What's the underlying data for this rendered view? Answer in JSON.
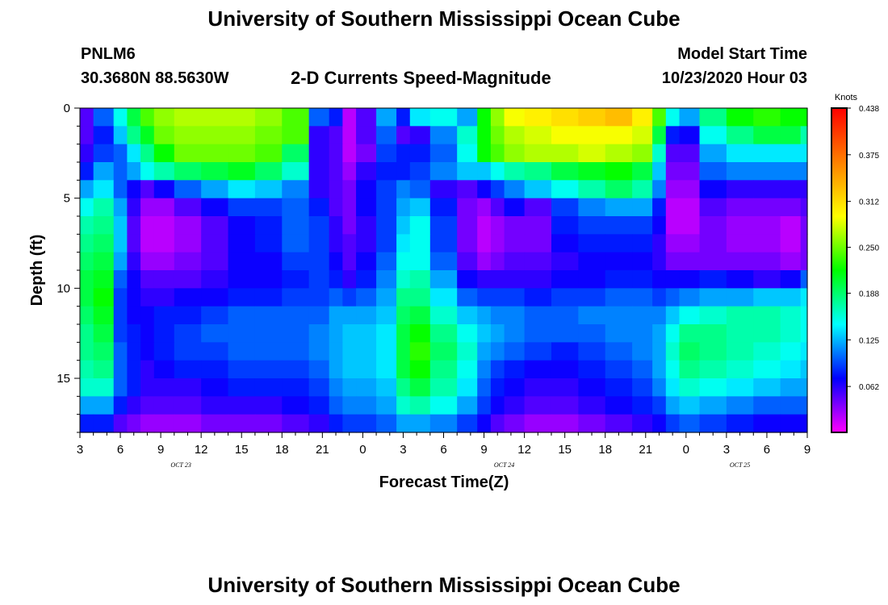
{
  "page": {
    "title": "University of Southern Mississippi Ocean Cube",
    "footer_title": "University of Southern Mississippi Ocean Cube",
    "station": "PNLM6",
    "coordinates": "30.3680N 88.5630W",
    "subtitle": "2-D Currents Speed-Magnitude",
    "model_start_label": "Model Start Time",
    "model_start_value": "10/23/2020 Hour 03"
  },
  "chart_data": {
    "type": "heatmap",
    "title": "2-D Currents Speed-Magnitude",
    "xlabel": "Forecast Time(Z)",
    "ylabel": "Depth (ft)",
    "x_tick_labels": [
      "3",
      "6",
      "9",
      "12",
      "15",
      "18",
      "21",
      "0",
      "3",
      "6",
      "9",
      "12",
      "15",
      "18",
      "21",
      "0",
      "3",
      "6",
      "9"
    ],
    "date_labels": [
      "OCT 23",
      "OCT 24",
      "OCT 25"
    ],
    "y_tick_labels": [
      "0",
      "5",
      "10",
      "15"
    ],
    "y_range": [
      0,
      18
    ],
    "x_range_hours": [
      0,
      54
    ],
    "colorbar": {
      "label": "Knots",
      "ticks": [
        "0.438",
        "0.375",
        "0.312",
        "0.250",
        "0.188",
        "0.125",
        "0.062"
      ],
      "range": [
        0.0,
        0.438
      ],
      "colors": [
        "#ff00ff",
        "#8000ff",
        "#0000ff",
        "#0080ff",
        "#00ffff",
        "#00ff80",
        "#00ff00",
        "#80ff00",
        "#ffff00",
        "#ffc000",
        "#ff8000",
        "#ff4000",
        "#ff0000"
      ]
    },
    "depth_levels": [
      0,
      1,
      2,
      3,
      4,
      5,
      6,
      7,
      8,
      9,
      10,
      11,
      12,
      13,
      14,
      15,
      16,
      17
    ],
    "time_anchors": [
      0,
      2,
      3,
      4,
      5,
      6,
      8,
      10,
      12,
      14,
      16,
      18,
      19,
      20,
      21,
      23,
      24,
      25,
      27,
      29,
      30,
      31,
      32,
      34,
      36,
      38,
      40,
      42,
      43,
      44,
      45,
      47,
      49,
      51,
      53,
      54
    ],
    "values": [
      [
        0.05,
        0.1,
        0.15,
        0.2,
        0.24,
        0.26,
        0.27,
        0.27,
        0.27,
        0.26,
        0.24,
        0.1,
        0.08,
        0.02,
        0.05,
        0.12,
        0.08,
        0.14,
        0.15,
        0.12,
        0.22,
        0.26,
        0.29,
        0.3,
        0.31,
        0.32,
        0.33,
        0.3,
        0.24,
        0.15,
        0.12,
        0.18,
        0.22,
        0.23,
        0.22,
        0.22
      ],
      [
        0.05,
        0.08,
        0.13,
        0.18,
        0.21,
        0.25,
        0.26,
        0.26,
        0.26,
        0.25,
        0.24,
        0.06,
        0.05,
        0.02,
        0.05,
        0.1,
        0.05,
        0.06,
        0.11,
        0.16,
        0.22,
        0.25,
        0.27,
        0.28,
        0.29,
        0.29,
        0.29,
        0.28,
        0.2,
        0.08,
        0.07,
        0.15,
        0.18,
        0.2,
        0.2,
        0.17
      ],
      [
        0.06,
        0.09,
        0.1,
        0.14,
        0.18,
        0.22,
        0.25,
        0.25,
        0.25,
        0.24,
        0.19,
        0.06,
        0.05,
        0.02,
        0.04,
        0.09,
        0.08,
        0.08,
        0.1,
        0.15,
        0.22,
        0.24,
        0.26,
        0.27,
        0.27,
        0.28,
        0.27,
        0.26,
        0.16,
        0.05,
        0.05,
        0.12,
        0.14,
        0.14,
        0.14,
        0.14
      ],
      [
        0.08,
        0.12,
        0.1,
        0.12,
        0.15,
        0.17,
        0.19,
        0.2,
        0.21,
        0.19,
        0.16,
        0.06,
        0.05,
        0.03,
        0.06,
        0.08,
        0.08,
        0.09,
        0.11,
        0.13,
        0.13,
        0.15,
        0.17,
        0.18,
        0.2,
        0.21,
        0.22,
        0.2,
        0.13,
        0.04,
        0.04,
        0.1,
        0.11,
        0.11,
        0.11,
        0.11
      ],
      [
        0.12,
        0.14,
        0.1,
        0.07,
        0.05,
        0.07,
        0.1,
        0.12,
        0.14,
        0.13,
        0.11,
        0.06,
        0.05,
        0.04,
        0.07,
        0.09,
        0.11,
        0.1,
        0.06,
        0.05,
        0.07,
        0.09,
        0.11,
        0.13,
        0.15,
        0.17,
        0.19,
        0.17,
        0.11,
        0.03,
        0.03,
        0.07,
        0.06,
        0.06,
        0.06,
        0.06
      ],
      [
        0.15,
        0.17,
        0.12,
        0.06,
        0.03,
        0.03,
        0.05,
        0.07,
        0.09,
        0.09,
        0.1,
        0.08,
        0.05,
        0.04,
        0.07,
        0.09,
        0.12,
        0.13,
        0.08,
        0.04,
        0.03,
        0.05,
        0.07,
        0.05,
        0.09,
        0.11,
        0.12,
        0.12,
        0.08,
        0.02,
        0.02,
        0.05,
        0.04,
        0.04,
        0.04,
        0.05
      ],
      [
        0.17,
        0.18,
        0.13,
        0.05,
        0.02,
        0.02,
        0.03,
        0.05,
        0.07,
        0.08,
        0.1,
        0.09,
        0.06,
        0.04,
        0.06,
        0.09,
        0.13,
        0.15,
        0.09,
        0.04,
        0.02,
        0.03,
        0.04,
        0.04,
        0.08,
        0.09,
        0.09,
        0.09,
        0.07,
        0.02,
        0.02,
        0.04,
        0.03,
        0.03,
        0.02,
        0.04
      ],
      [
        0.18,
        0.19,
        0.13,
        0.05,
        0.02,
        0.02,
        0.03,
        0.05,
        0.07,
        0.08,
        0.1,
        0.09,
        0.06,
        0.05,
        0.06,
        0.09,
        0.14,
        0.15,
        0.09,
        0.04,
        0.02,
        0.03,
        0.04,
        0.04,
        0.07,
        0.08,
        0.08,
        0.08,
        0.06,
        0.03,
        0.03,
        0.04,
        0.03,
        0.03,
        0.02,
        0.04
      ],
      [
        0.19,
        0.2,
        0.12,
        0.06,
        0.03,
        0.03,
        0.04,
        0.05,
        0.07,
        0.07,
        0.09,
        0.09,
        0.07,
        0.05,
        0.07,
        0.1,
        0.15,
        0.15,
        0.1,
        0.05,
        0.03,
        0.04,
        0.05,
        0.05,
        0.06,
        0.07,
        0.07,
        0.07,
        0.06,
        0.04,
        0.04,
        0.04,
        0.04,
        0.04,
        0.03,
        0.04
      ],
      [
        0.2,
        0.21,
        0.1,
        0.07,
        0.05,
        0.05,
        0.05,
        0.06,
        0.07,
        0.07,
        0.08,
        0.09,
        0.08,
        0.06,
        0.08,
        0.11,
        0.16,
        0.17,
        0.12,
        0.07,
        0.06,
        0.06,
        0.06,
        0.06,
        0.07,
        0.07,
        0.08,
        0.08,
        0.07,
        0.07,
        0.07,
        0.08,
        0.07,
        0.06,
        0.07,
        0.1
      ],
      [
        0.2,
        0.22,
        0.09,
        0.07,
        0.06,
        0.06,
        0.07,
        0.07,
        0.08,
        0.08,
        0.09,
        0.09,
        0.1,
        0.09,
        0.1,
        0.12,
        0.18,
        0.18,
        0.14,
        0.1,
        0.09,
        0.09,
        0.09,
        0.08,
        0.09,
        0.09,
        0.1,
        0.1,
        0.09,
        0.1,
        0.11,
        0.12,
        0.12,
        0.13,
        0.13,
        0.14
      ],
      [
        0.19,
        0.21,
        0.09,
        0.07,
        0.07,
        0.08,
        0.08,
        0.09,
        0.1,
        0.1,
        0.1,
        0.1,
        0.12,
        0.12,
        0.12,
        0.13,
        0.19,
        0.2,
        0.16,
        0.13,
        0.12,
        0.11,
        0.11,
        0.1,
        0.1,
        0.11,
        0.11,
        0.11,
        0.11,
        0.13,
        0.15,
        0.16,
        0.17,
        0.17,
        0.16,
        0.15
      ],
      [
        0.18,
        0.2,
        0.09,
        0.08,
        0.07,
        0.08,
        0.09,
        0.1,
        0.1,
        0.1,
        0.1,
        0.11,
        0.12,
        0.13,
        0.13,
        0.14,
        0.2,
        0.22,
        0.18,
        0.15,
        0.13,
        0.12,
        0.11,
        0.1,
        0.1,
        0.1,
        0.11,
        0.11,
        0.12,
        0.15,
        0.18,
        0.18,
        0.17,
        0.17,
        0.16,
        0.15
      ],
      [
        0.18,
        0.19,
        0.1,
        0.08,
        0.07,
        0.08,
        0.09,
        0.09,
        0.1,
        0.1,
        0.1,
        0.11,
        0.12,
        0.13,
        0.13,
        0.14,
        0.2,
        0.23,
        0.19,
        0.16,
        0.12,
        0.11,
        0.1,
        0.09,
        0.08,
        0.09,
        0.1,
        0.11,
        0.12,
        0.16,
        0.19,
        0.18,
        0.17,
        0.16,
        0.15,
        0.14
      ],
      [
        0.17,
        0.18,
        0.1,
        0.08,
        0.06,
        0.07,
        0.08,
        0.08,
        0.09,
        0.09,
        0.09,
        0.1,
        0.12,
        0.13,
        0.13,
        0.14,
        0.2,
        0.22,
        0.18,
        0.15,
        0.11,
        0.09,
        0.08,
        0.07,
        0.07,
        0.08,
        0.09,
        0.1,
        0.12,
        0.15,
        0.18,
        0.17,
        0.16,
        0.15,
        0.14,
        0.13
      ],
      [
        0.16,
        0.16,
        0.1,
        0.08,
        0.06,
        0.06,
        0.06,
        0.07,
        0.08,
        0.08,
        0.08,
        0.09,
        0.11,
        0.12,
        0.12,
        0.13,
        0.18,
        0.2,
        0.17,
        0.14,
        0.1,
        0.08,
        0.07,
        0.06,
        0.06,
        0.07,
        0.08,
        0.09,
        0.11,
        0.14,
        0.16,
        0.15,
        0.14,
        0.13,
        0.12,
        0.12
      ],
      [
        0.12,
        0.12,
        0.08,
        0.06,
        0.05,
        0.05,
        0.05,
        0.06,
        0.06,
        0.06,
        0.07,
        0.08,
        0.1,
        0.11,
        0.11,
        0.12,
        0.16,
        0.17,
        0.15,
        0.12,
        0.09,
        0.07,
        0.06,
        0.05,
        0.05,
        0.06,
        0.07,
        0.08,
        0.09,
        0.12,
        0.13,
        0.12,
        0.11,
        0.1,
        0.1,
        0.1
      ],
      [
        0.08,
        0.08,
        0.05,
        0.04,
        0.03,
        0.03,
        0.03,
        0.04,
        0.04,
        0.04,
        0.05,
        0.06,
        0.08,
        0.09,
        0.09,
        0.1,
        0.12,
        0.12,
        0.11,
        0.09,
        0.07,
        0.05,
        0.04,
        0.03,
        0.03,
        0.04,
        0.05,
        0.06,
        0.07,
        0.09,
        0.1,
        0.09,
        0.08,
        0.07,
        0.07,
        0.07
      ]
    ]
  }
}
